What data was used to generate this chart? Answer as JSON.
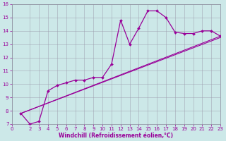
{
  "xlabel": "Windchill (Refroidissement éolien,°C)",
  "bg_color": "#cce8e8",
  "line_color": "#990099",
  "grid_color": "#9999aa",
  "spine_color": "#888899",
  "xlim": [
    0,
    23
  ],
  "ylim": [
    7,
    16
  ],
  "xticks": [
    0,
    2,
    3,
    4,
    5,
    6,
    7,
    8,
    9,
    10,
    11,
    12,
    13,
    14,
    15,
    16,
    17,
    18,
    19,
    20,
    21,
    22,
    23
  ],
  "yticks": [
    7,
    8,
    9,
    10,
    11,
    12,
    13,
    14,
    15,
    16
  ],
  "curve_x": [
    1,
    2,
    3,
    4,
    5,
    6,
    7,
    8,
    9,
    10,
    11,
    12,
    13,
    14,
    15,
    16,
    17,
    18,
    19,
    20,
    21,
    22,
    23
  ],
  "curve_y": [
    7.8,
    7.0,
    7.2,
    9.5,
    9.9,
    10.1,
    10.3,
    10.3,
    10.5,
    10.5,
    11.5,
    14.8,
    13.0,
    14.2,
    15.5,
    15.5,
    15.0,
    13.9,
    13.8,
    13.8,
    14.0,
    14.0,
    13.6
  ],
  "line1_x": [
    1,
    23
  ],
  "line1_y": [
    7.8,
    13.5
  ],
  "line2_x": [
    1,
    23
  ],
  "line2_y": [
    7.8,
    13.6
  ],
  "tick_fontsize": 5.0,
  "xlabel_fontsize": 5.5
}
